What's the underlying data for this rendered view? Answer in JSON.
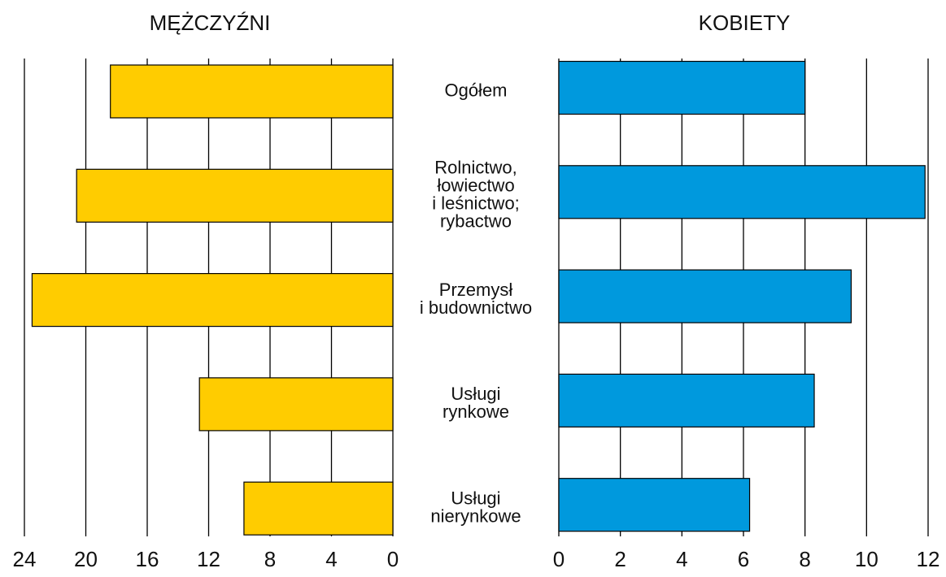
{
  "chart_data": [
    {
      "type": "bar",
      "orientation": "horizontal",
      "title": "MĘŻCZYŹNI",
      "categories": [
        [
          "Ogółem"
        ],
        [
          "Rolnictwo,",
          "łowiectwo",
          "i leśnictwo;",
          "rybactwo"
        ],
        [
          "Przemysł",
          "i budownictwo"
        ],
        [
          "Usługi",
          "rynkowe"
        ],
        [
          "Usługi",
          "nierynkowe"
        ]
      ],
      "values": [
        18.4,
        20.6,
        23.5,
        12.6,
        9.7
      ],
      "color": "#ffcc00",
      "xlim": [
        24,
        0
      ],
      "xticks": [
        24,
        20,
        16,
        12,
        8,
        4,
        0
      ],
      "grid": true
    },
    {
      "type": "bar",
      "orientation": "horizontal",
      "title": "KOBIETY",
      "values": [
        8.0,
        11.9,
        9.5,
        8.3,
        6.2
      ],
      "color": "#0099dd",
      "xlim": [
        0,
        12
      ],
      "xticks": [
        0,
        2,
        4,
        6,
        8,
        10,
        12
      ],
      "grid": true
    }
  ]
}
